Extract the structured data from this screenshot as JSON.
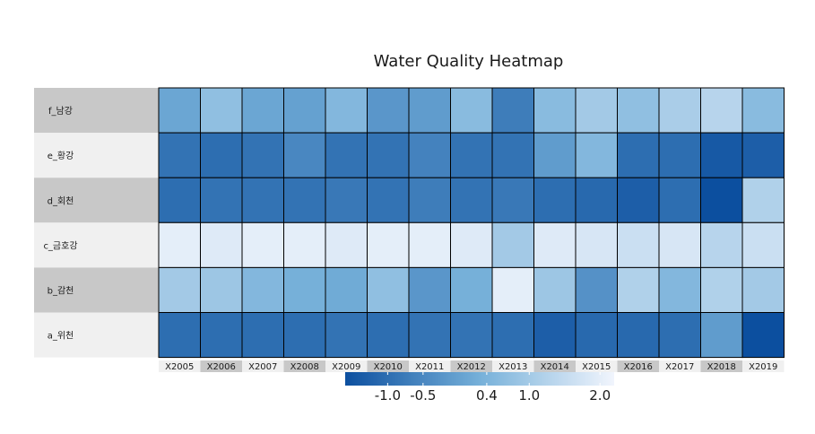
{
  "chart_data": {
    "type": "heatmap",
    "title": "Water Quality Heatmap",
    "rows": [
      "f_남강",
      "e_황강",
      "d_회천",
      "c_금호강",
      "b_감천",
      "a_위천"
    ],
    "columns": [
      "X2005",
      "X2006",
      "X2007",
      "X2008",
      "X2009",
      "X2010",
      "X2011",
      "X2012",
      "X2013",
      "X2014",
      "X2015",
      "X2016",
      "X2017",
      "X2018",
      "X2019"
    ],
    "values": [
      [
        0.1,
        0.7,
        0.1,
        0.0,
        0.5,
        -0.2,
        -0.1,
        0.6,
        -0.7,
        0.6,
        1.0,
        0.7,
        1.1,
        1.3,
        0.6
      ],
      [
        -0.9,
        -1.0,
        -0.9,
        -0.5,
        -0.9,
        -0.9,
        -0.6,
        -0.9,
        -0.9,
        -0.1,
        0.5,
        -1.0,
        -1.0,
        -1.4,
        -1.3
      ],
      [
        -1.0,
        -0.9,
        -0.9,
        -0.9,
        -0.8,
        -0.9,
        -0.7,
        -0.9,
        -0.8,
        -1.0,
        -1.1,
        -1.3,
        -1.0,
        -1.8,
        1.2
      ],
      [
        2.0,
        1.9,
        2.0,
        2.0,
        1.9,
        2.0,
        2.0,
        1.9,
        1.0,
        1.9,
        1.8,
        1.6,
        1.8,
        1.3,
        1.6
      ],
      [
        1.0,
        0.9,
        0.5,
        0.3,
        0.2,
        0.7,
        -0.2,
        0.3,
        2.0,
        0.9,
        -0.3,
        1.2,
        0.5,
        1.2,
        1.0
      ],
      [
        -1.0,
        -1.0,
        -1.0,
        -1.0,
        -0.9,
        -1.0,
        -0.9,
        -0.9,
        -1.0,
        -1.3,
        -1.1,
        -1.1,
        -1.0,
        -0.1,
        -1.7
      ]
    ],
    "legend": {
      "ticks": [
        -1.0,
        -0.5,
        0.4,
        1.0,
        2.0
      ],
      "tick_labels": [
        "-1.0",
        "-0.5",
        "0.4",
        "1.0",
        "2.0"
      ],
      "range": [
        -1.6,
        2.2
      ],
      "position": "bottom"
    },
    "colors": {
      "low": "#0c4f9f",
      "mid": "#76b0d9",
      "high": "#f1f5fd",
      "row_band_dark": "#c8c8c8",
      "row_band_light": "#f0f0f0"
    }
  }
}
